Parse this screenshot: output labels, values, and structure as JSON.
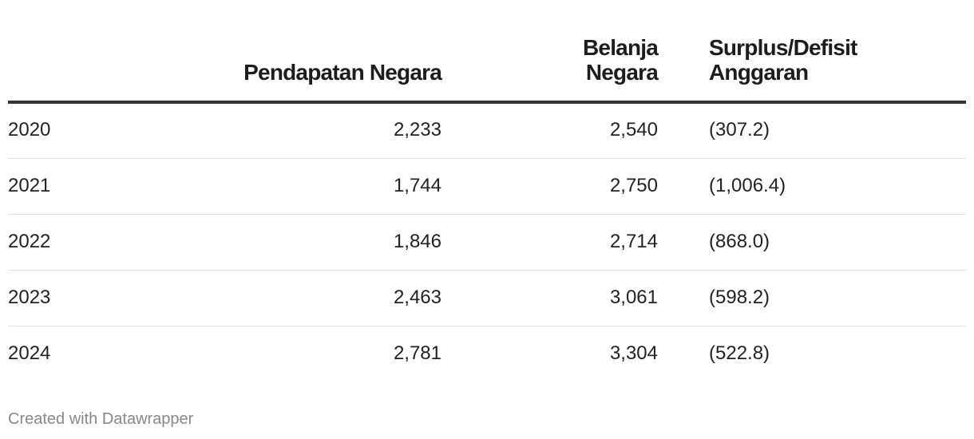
{
  "table": {
    "headers": [
      "Pendapatan Negara",
      "Belanja Negara",
      "Surplus/Defisit Anggaran"
    ],
    "rows": [
      [
        "2020",
        "2,233",
        "2,540",
        "(307.2)"
      ],
      [
        "2021",
        "1,744",
        "2,750",
        "(1,006.4)"
      ],
      [
        "2022",
        "1,846",
        "2,714",
        "(868.0)"
      ],
      [
        "2023",
        "2,463",
        "3,061",
        "(598.2)"
      ],
      [
        "2024",
        "2,781",
        "3,304",
        "(522.8)"
      ]
    ]
  },
  "footer": "Created with Datawrapper"
}
